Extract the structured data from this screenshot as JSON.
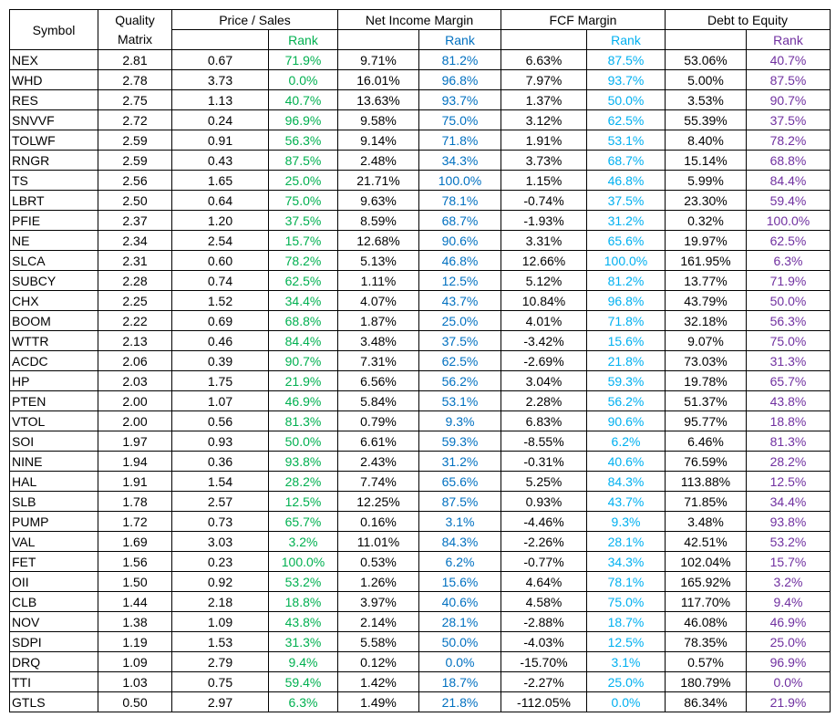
{
  "table": {
    "headers": [
      "Symbol",
      "Quality Matrix",
      "Price / Sales",
      "Net Income Margin",
      "FCF Margin",
      "Debt to Equity"
    ],
    "subheaders": [
      "Rank",
      "Rank",
      "Rank",
      "Rank"
    ],
    "rows": [
      [
        "NEX",
        "2.81",
        "0.67",
        "71.9%",
        "9.71%",
        "81.2%",
        "6.63%",
        "87.5%",
        "53.06%",
        "40.7%"
      ],
      [
        "WHD",
        "2.78",
        "3.73",
        "0.0%",
        "16.01%",
        "96.8%",
        "7.97%",
        "93.7%",
        "5.00%",
        "87.5%"
      ],
      [
        "RES",
        "2.75",
        "1.13",
        "40.7%",
        "13.63%",
        "93.7%",
        "1.37%",
        "50.0%",
        "3.53%",
        "90.7%"
      ],
      [
        "SNVVF",
        "2.72",
        "0.24",
        "96.9%",
        "9.58%",
        "75.0%",
        "3.12%",
        "62.5%",
        "55.39%",
        "37.5%"
      ],
      [
        "TOLWF",
        "2.59",
        "0.91",
        "56.3%",
        "9.14%",
        "71.8%",
        "1.91%",
        "53.1%",
        "8.40%",
        "78.2%"
      ],
      [
        "RNGR",
        "2.59",
        "0.43",
        "87.5%",
        "2.48%",
        "34.3%",
        "3.73%",
        "68.7%",
        "15.14%",
        "68.8%"
      ],
      [
        "TS",
        "2.56",
        "1.65",
        "25.0%",
        "21.71%",
        "100.0%",
        "1.15%",
        "46.8%",
        "5.99%",
        "84.4%"
      ],
      [
        "LBRT",
        "2.50",
        "0.64",
        "75.0%",
        "9.63%",
        "78.1%",
        "-0.74%",
        "37.5%",
        "23.30%",
        "59.4%"
      ],
      [
        "PFIE",
        "2.37",
        "1.20",
        "37.5%",
        "8.59%",
        "68.7%",
        "-1.93%",
        "31.2%",
        "0.32%",
        "100.0%"
      ],
      [
        "NE",
        "2.34",
        "2.54",
        "15.7%",
        "12.68%",
        "90.6%",
        "3.31%",
        "65.6%",
        "19.97%",
        "62.5%"
      ],
      [
        "SLCA",
        "2.31",
        "0.60",
        "78.2%",
        "5.13%",
        "46.8%",
        "12.66%",
        "100.0%",
        "161.95%",
        "6.3%"
      ],
      [
        "SUBCY",
        "2.28",
        "0.74",
        "62.5%",
        "1.11%",
        "12.5%",
        "5.12%",
        "81.2%",
        "13.77%",
        "71.9%"
      ],
      [
        "CHX",
        "2.25",
        "1.52",
        "34.4%",
        "4.07%",
        "43.7%",
        "10.84%",
        "96.8%",
        "43.79%",
        "50.0%"
      ],
      [
        "BOOM",
        "2.22",
        "0.69",
        "68.8%",
        "1.87%",
        "25.0%",
        "4.01%",
        "71.8%",
        "32.18%",
        "56.3%"
      ],
      [
        "WTTR",
        "2.13",
        "0.46",
        "84.4%",
        "3.48%",
        "37.5%",
        "-3.42%",
        "15.6%",
        "9.07%",
        "75.0%"
      ],
      [
        "ACDC",
        "2.06",
        "0.39",
        "90.7%",
        "7.31%",
        "62.5%",
        "-2.69%",
        "21.8%",
        "73.03%",
        "31.3%"
      ],
      [
        "HP",
        "2.03",
        "1.75",
        "21.9%",
        "6.56%",
        "56.2%",
        "3.04%",
        "59.3%",
        "19.78%",
        "65.7%"
      ],
      [
        "PTEN",
        "2.00",
        "1.07",
        "46.9%",
        "5.84%",
        "53.1%",
        "2.28%",
        "56.2%",
        "51.37%",
        "43.8%"
      ],
      [
        "VTOL",
        "2.00",
        "0.56",
        "81.3%",
        "0.79%",
        "9.3%",
        "6.83%",
        "90.6%",
        "95.77%",
        "18.8%"
      ],
      [
        "SOI",
        "1.97",
        "0.93",
        "50.0%",
        "6.61%",
        "59.3%",
        "-8.55%",
        "6.2%",
        "6.46%",
        "81.3%"
      ],
      [
        "NINE",
        "1.94",
        "0.36",
        "93.8%",
        "2.43%",
        "31.2%",
        "-0.31%",
        "40.6%",
        "76.59%",
        "28.2%"
      ],
      [
        "HAL",
        "1.91",
        "1.54",
        "28.2%",
        "7.74%",
        "65.6%",
        "5.25%",
        "84.3%",
        "113.88%",
        "12.5%"
      ],
      [
        "SLB",
        "1.78",
        "2.57",
        "12.5%",
        "12.25%",
        "87.5%",
        "0.93%",
        "43.7%",
        "71.85%",
        "34.4%"
      ],
      [
        "PUMP",
        "1.72",
        "0.73",
        "65.7%",
        "0.16%",
        "3.1%",
        "-4.46%",
        "9.3%",
        "3.48%",
        "93.8%"
      ],
      [
        "VAL",
        "1.69",
        "3.03",
        "3.2%",
        "11.01%",
        "84.3%",
        "-2.26%",
        "28.1%",
        "42.51%",
        "53.2%"
      ],
      [
        "FET",
        "1.56",
        "0.23",
        "100.0%",
        "0.53%",
        "6.2%",
        "-0.77%",
        "34.3%",
        "102.04%",
        "15.7%"
      ],
      [
        "OII",
        "1.50",
        "0.92",
        "53.2%",
        "1.26%",
        "15.6%",
        "4.64%",
        "78.1%",
        "165.92%",
        "3.2%"
      ],
      [
        "CLB",
        "1.44",
        "2.18",
        "18.8%",
        "3.97%",
        "40.6%",
        "4.58%",
        "75.0%",
        "117.70%",
        "9.4%"
      ],
      [
        "NOV",
        "1.38",
        "1.09",
        "43.8%",
        "2.14%",
        "28.1%",
        "-2.88%",
        "18.7%",
        "46.08%",
        "46.9%"
      ],
      [
        "SDPI",
        "1.19",
        "1.53",
        "31.3%",
        "5.58%",
        "50.0%",
        "-4.03%",
        "12.5%",
        "78.35%",
        "25.0%"
      ],
      [
        "DRQ",
        "1.09",
        "2.79",
        "9.4%",
        "0.12%",
        "0.0%",
        "-15.70%",
        "3.1%",
        "0.57%",
        "96.9%"
      ],
      [
        "TTI",
        "1.03",
        "0.75",
        "59.4%",
        "1.42%",
        "18.7%",
        "-2.27%",
        "25.0%",
        "180.79%",
        "0.0%"
      ],
      [
        "GTLS",
        "0.50",
        "2.97",
        "6.3%",
        "1.49%",
        "21.8%",
        "-112.05%",
        "0.0%",
        "86.34%",
        "21.9%"
      ]
    ]
  }
}
